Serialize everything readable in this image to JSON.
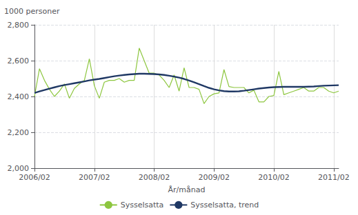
{
  "chart_data": {
    "type": "line",
    "ylabel": "1000 personer",
    "xlabel": "År/månad",
    "categories": [
      "2006/02",
      null,
      null,
      null,
      null,
      null,
      null,
      null,
      null,
      null,
      null,
      null,
      "2007/02",
      null,
      null,
      null,
      null,
      null,
      null,
      null,
      null,
      null,
      null,
      null,
      "2008/02",
      null,
      null,
      null,
      null,
      null,
      null,
      null,
      null,
      null,
      null,
      null,
      "2009/02",
      null,
      null,
      null,
      null,
      null,
      null,
      null,
      null,
      null,
      null,
      null,
      "2010/02",
      null,
      null,
      null,
      null,
      null,
      null,
      null,
      null,
      null,
      null,
      null,
      "2011/02",
      null
    ],
    "series": [
      {
        "name": "Sysselsatta",
        "color": "#8dc63f",
        "values": [
          2400,
          2555,
          2490,
          2440,
          2400,
          2430,
          2470,
          2390,
          2445,
          2470,
          2490,
          2610,
          2460,
          2390,
          2480,
          2490,
          2490,
          2500,
          2480,
          2490,
          2490,
          2670,
          2600,
          2530,
          2530,
          2520,
          2490,
          2450,
          2520,
          2430,
          2560,
          2450,
          2450,
          2440,
          2360,
          2400,
          2415,
          2420,
          2550,
          2455,
          2450,
          2450,
          2450,
          2420,
          2435,
          2370,
          2370,
          2400,
          2405,
          2540,
          2410,
          2420,
          2430,
          2440,
          2450,
          2430,
          2430,
          2450,
          2450,
          2430,
          2420,
          2430
        ]
      },
      {
        "name": "Sysselsatta, trend",
        "color": "#1f3864",
        "values": [
          2420,
          2428,
          2436,
          2444,
          2451,
          2458,
          2464,
          2469,
          2474,
          2479,
          2484,
          2490,
          2494,
          2498,
          2503,
          2508,
          2513,
          2517,
          2520,
          2523,
          2525,
          2527,
          2527,
          2526,
          2525,
          2523,
          2520,
          2516,
          2511,
          2505,
          2498,
          2489,
          2479,
          2469,
          2458,
          2448,
          2440,
          2434,
          2430,
          2428,
          2428,
          2429,
          2432,
          2436,
          2440,
          2444,
          2447,
          2450,
          2452,
          2453,
          2454,
          2454,
          2454,
          2454,
          2454,
          2455,
          2456,
          2458,
          2460,
          2461,
          2462,
          2463
        ]
      }
    ],
    "ylim": [
      2000,
      2800
    ],
    "yticks": [
      2000,
      2200,
      2400,
      2600,
      2800
    ],
    "grid": true,
    "legend": "bottom"
  }
}
